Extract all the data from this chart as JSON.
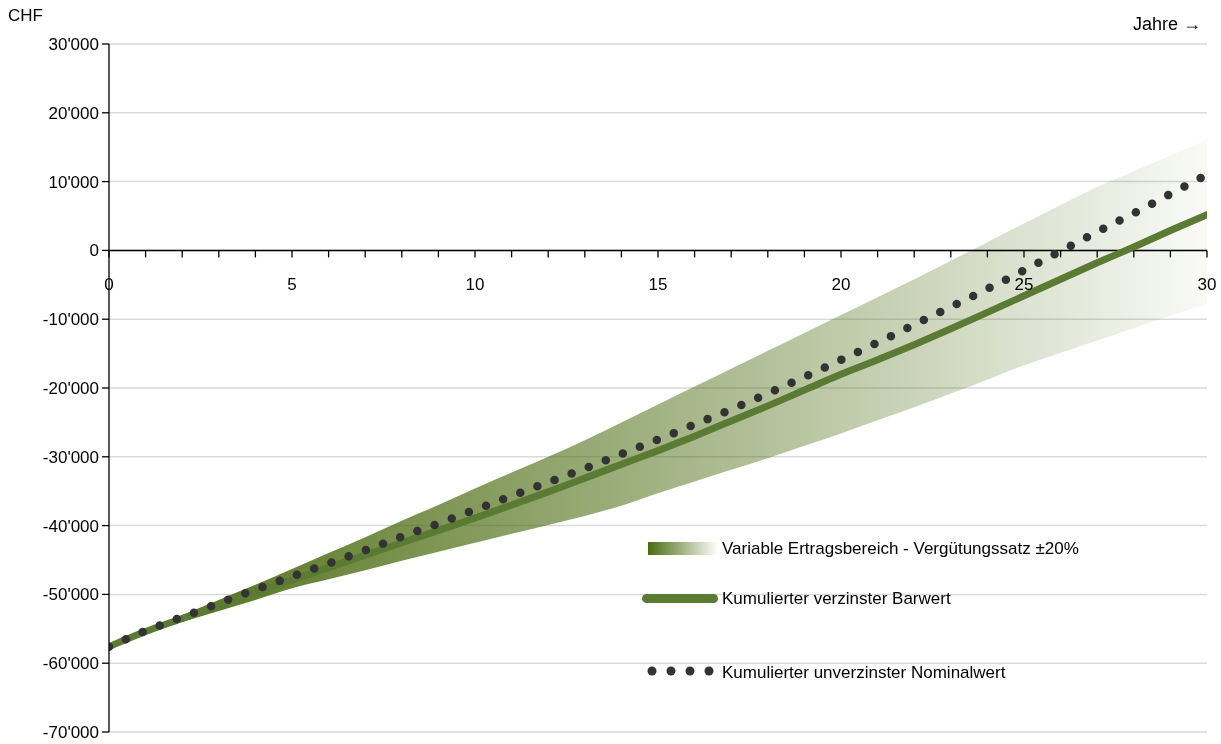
{
  "chart_data": {
    "type": "line",
    "xlabel": "Jahre →",
    "ylabel": "CHF",
    "x": [
      0,
      1,
      2,
      3,
      4,
      5,
      6,
      7,
      8,
      9,
      10,
      11,
      12,
      13,
      14,
      15,
      16,
      17,
      18,
      19,
      20,
      21,
      22,
      23,
      24,
      25,
      26,
      27,
      28,
      29,
      30
    ],
    "series": [
      {
        "type": "area",
        "name": "Variable Ertragsbereich - Vergütungssatz ±20%",
        "color": "#4a6b0f",
        "values": [
          null,
          null,
          null,
          null,
          null,
          null,
          null,
          null,
          null,
          null,
          null,
          null,
          null,
          null,
          null,
          null,
          null,
          null,
          null,
          null,
          null,
          null,
          null,
          null,
          null,
          null,
          null,
          null,
          null,
          null,
          null
        ],
        "lower": [
          -57600,
          -55600,
          -54000,
          -52400,
          -50800,
          -49100,
          -47800,
          -46500,
          -45100,
          -43800,
          -42500,
          -41200,
          -39900,
          -38600,
          -37100,
          -35300,
          -33600,
          -31900,
          -30200,
          -28400,
          -26600,
          -24700,
          -22800,
          -20800,
          -18800,
          -16700,
          -14900,
          -13100,
          -11300,
          -9500,
          -7800
        ],
        "upper": [
          -57600,
          -55200,
          -53000,
          -50800,
          -48600,
          -46300,
          -44000,
          -41700,
          -39300,
          -37000,
          -34600,
          -32300,
          -30000,
          -27600,
          -25000,
          -22400,
          -19800,
          -17200,
          -14600,
          -12000,
          -9400,
          -6800,
          -4200,
          -1500,
          1200,
          3900,
          6600,
          9200,
          11500,
          13800,
          16100
        ]
      },
      {
        "type": "line",
        "name": "Kumulierter verzinster Barwert",
        "color": "#5b7a34",
        "line_style": "solid",
        "values": [
          -57600,
          -55400,
          -53500,
          -51600,
          -49700,
          -47900,
          -46100,
          -44300,
          -42500,
          -40700,
          -38900,
          -37000,
          -35100,
          -33100,
          -31100,
          -29100,
          -27000,
          -24800,
          -22600,
          -20300,
          -18000,
          -15900,
          -13700,
          -11400,
          -9000,
          -6600,
          -4200,
          -1800,
          500,
          2900,
          5200
        ]
      },
      {
        "type": "line",
        "name": "Kumulierter unverzinster Nominalwert",
        "color": "#333333",
        "line_style": "dotted",
        "values": [
          -57600,
          -55300,
          -53300,
          -51300,
          -49300,
          -47400,
          -45500,
          -43600,
          -41600,
          -39700,
          -37700,
          -35700,
          -33700,
          -31700,
          -29600,
          -27500,
          -25300,
          -23100,
          -20800,
          -18400,
          -15900,
          -13400,
          -10800,
          -8200,
          -5600,
          -2900,
          -100,
          2700,
          5400,
          8200,
          11000
        ]
      }
    ],
    "xlim": [
      0,
      30
    ],
    "xticks": [
      0,
      {
        "value": 1,
        "label": null
      },
      {
        "value": 2,
        "label": null
      },
      {
        "value": 3,
        "label": null
      },
      {
        "value": 4,
        "label": null
      },
      5,
      {
        "value": 6,
        "label": null
      },
      {
        "value": 7,
        "label": null
      },
      {
        "value": 8,
        "label": null
      },
      {
        "value": 9,
        "label": null
      },
      10,
      {
        "value": 11,
        "label": null
      },
      {
        "value": 12,
        "label": null
      },
      {
        "value": 13,
        "label": null
      },
      {
        "value": 14,
        "label": null
      },
      15,
      {
        "value": 16,
        "label": null
      },
      {
        "value": 17,
        "label": null
      },
      {
        "value": 18,
        "label": null
      },
      {
        "value": 19,
        "label": null
      },
      20,
      {
        "value": 21,
        "label": null
      },
      {
        "value": 22,
        "label": null
      },
      {
        "value": 23,
        "label": null
      },
      {
        "value": 24,
        "label": null
      },
      25,
      {
        "value": 26,
        "label": null
      },
      {
        "value": 27,
        "label": null
      },
      {
        "value": 28,
        "label": null
      },
      {
        "value": 29,
        "label": null
      },
      30
    ],
    "ylim": [
      -70000,
      30000
    ],
    "yticks": [
      {
        "value": -70000,
        "label": "-70'000"
      },
      {
        "value": -60000,
        "label": "-60'000"
      },
      {
        "value": -50000,
        "label": "-50'000"
      },
      {
        "value": -40000,
        "label": "-40'000"
      },
      {
        "value": -30000,
        "label": "-30'000"
      },
      {
        "value": -20000,
        "label": "-20'000"
      },
      {
        "value": -10000,
        "label": "-10'000"
      },
      0,
      {
        "value": 10000,
        "label": "10'000"
      },
      {
        "value": 20000,
        "label": "20'000"
      },
      {
        "value": 30000,
        "label": "30'000"
      }
    ],
    "grid": "y",
    "legend": "bottom right",
    "marker": "none"
  }
}
